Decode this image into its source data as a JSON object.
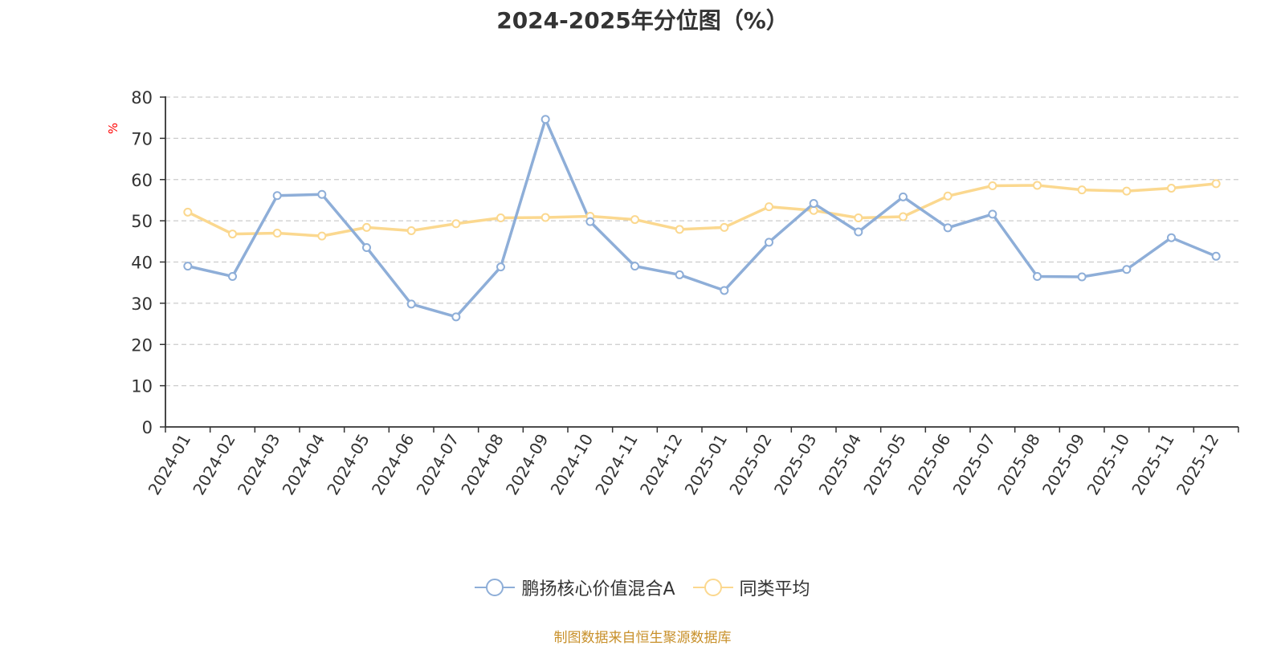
{
  "chart_data": {
    "type": "line",
    "title": "2024-2025年分位图（%）",
    "ylabel": "%",
    "xlabel": "",
    "ylim": [
      0,
      80
    ],
    "yticks": [
      0,
      10,
      20,
      30,
      40,
      50,
      60,
      70,
      80
    ],
    "grid": true,
    "legend_position": "bottom",
    "categories": [
      "2024-01",
      "2024-02",
      "2024-03",
      "2024-04",
      "2024-05",
      "2024-06",
      "2024-07",
      "2024-08",
      "2024-09",
      "2024-10",
      "2024-11",
      "2024-12",
      "2025-01",
      "2025-02",
      "2025-03",
      "2025-04",
      "2025-05",
      "2025-06",
      "2025-07",
      "2025-08",
      "2025-09",
      "2025-10",
      "2025-11",
      "2025-12"
    ],
    "series": [
      {
        "name": "鹏扬核心价值混合A",
        "color": "#8eaed8",
        "values": [
          39.0,
          36.5,
          56.1,
          56.4,
          43.5,
          29.8,
          26.7,
          38.8,
          74.6,
          49.8,
          39.0,
          36.9,
          33.1,
          44.8,
          54.2,
          47.3,
          55.8,
          48.3,
          51.6,
          36.5,
          36.4,
          38.2,
          45.9,
          41.4
        ]
      },
      {
        "name": "同类平均",
        "color": "#fbd88f",
        "values": [
          52.1,
          46.8,
          47.0,
          46.3,
          48.4,
          47.6,
          49.3,
          50.7,
          50.8,
          51.1,
          50.3,
          47.9,
          48.4,
          53.4,
          52.5,
          50.7,
          51.0,
          56.0,
          58.5,
          58.6,
          57.5,
          57.2,
          57.9,
          59.0
        ]
      }
    ]
  },
  "source_text": "制图数据来自恒生聚源数据库",
  "colors": {
    "axis": "#333333",
    "grid": "#cccccc",
    "ylabel": "#ff0000",
    "source": "#c8902a"
  }
}
